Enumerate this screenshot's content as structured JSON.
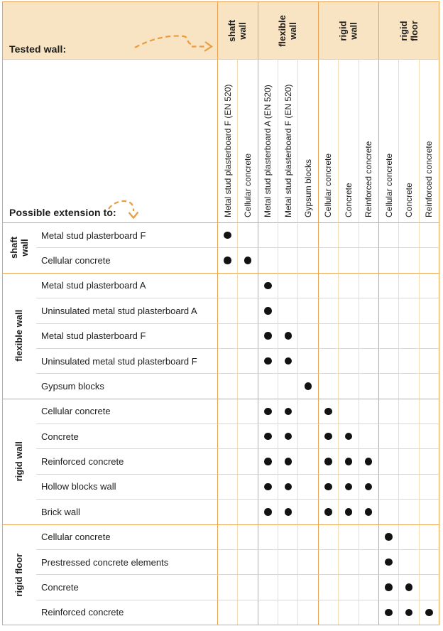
{
  "header": {
    "tested_wall_label": "Tested wall:",
    "possible_extension_label": "Possible extension to:"
  },
  "icons": {
    "tested_wall_arrow": "dashed-right-arrow",
    "possible_extension_arrow": "dashed-down-arrow",
    "dot_marker": "filled-circle"
  },
  "colors": {
    "accent_border": "#e9a455",
    "header_bg": "#f8e3c3",
    "column_line": "#f3dcb4",
    "row_line": "#d8d8d8",
    "band_edge": "#eccd9e",
    "arrow": "#ea9c3e",
    "dot": "#121212",
    "text": "#1d1d1b"
  },
  "column_groups": [
    {
      "label": "shaft wall",
      "label_lines": [
        "shaft",
        "wall"
      ],
      "columns": [
        "Metal stud plasterboard F (EN 520)",
        "Cellular concrete"
      ]
    },
    {
      "label": "flexible wall",
      "label_lines": [
        "flexible",
        "wall"
      ],
      "columns": [
        "Metal stud plasterboard A (EN 520)",
        "Metal stud plasterboard F (EN 520)",
        "Gypsum blocks"
      ]
    },
    {
      "label": "rigid wall",
      "label_lines": [
        "rigid",
        "wall"
      ],
      "columns": [
        "Cellular concrete",
        "Concrete",
        "Reinforced concrete"
      ]
    },
    {
      "label": "rigid floor",
      "label_lines": [
        "rigid",
        "floor"
      ],
      "columns": [
        "Cellular concrete",
        "Concrete",
        "Reinforced concrete"
      ]
    }
  ],
  "row_groups": [
    {
      "label": "shaft wall",
      "label_lines": [
        "shaft",
        "wall"
      ],
      "rows": [
        {
          "label": "Metal stud plasterboard F",
          "dots": [
            1
          ]
        },
        {
          "label": "Cellular concrete",
          "dots": [
            1,
            2
          ]
        }
      ]
    },
    {
      "label": "flexible wall",
      "label_lines": [
        "flexible wall"
      ],
      "rows": [
        {
          "label": "Metal stud plasterboard A",
          "dots": [
            3
          ]
        },
        {
          "label": "Uninsulated metal stud plasterboard A",
          "dots": [
            3
          ]
        },
        {
          "label": "Metal stud plasterboard F",
          "dots": [
            3,
            4
          ]
        },
        {
          "label": "Uninsulated metal stud plasterboard F",
          "dots": [
            3,
            4
          ]
        },
        {
          "label": "Gypsum blocks",
          "dots": [
            5
          ]
        }
      ]
    },
    {
      "label": "rigid wall",
      "label_lines": [
        "rigid wall"
      ],
      "rows": [
        {
          "label": "Cellular concrete",
          "dots": [
            3,
            4,
            6
          ]
        },
        {
          "label": "Concrete",
          "dots": [
            3,
            4,
            6,
            7
          ]
        },
        {
          "label": "Reinforced concrete",
          "dots": [
            3,
            4,
            6,
            7,
            8
          ]
        },
        {
          "label": "Hollow blocks wall",
          "dots": [
            3,
            4,
            6,
            7,
            8
          ]
        },
        {
          "label": "Brick wall",
          "dots": [
            3,
            4,
            6,
            7,
            8
          ]
        }
      ]
    },
    {
      "label": "rigid floor",
      "label_lines": [
        "rigid floor"
      ],
      "rows": [
        {
          "label": "Cellular concrete",
          "dots": [
            9
          ]
        },
        {
          "label": "Prestressed concrete elements",
          "dots": [
            9
          ]
        },
        {
          "label": "Concrete",
          "dots": [
            9,
            10
          ]
        },
        {
          "label": "Reinforced concrete",
          "dots": [
            9,
            10,
            11
          ]
        }
      ]
    }
  ],
  "matrix": {
    "total_columns": 11,
    "total_rows": 16
  }
}
